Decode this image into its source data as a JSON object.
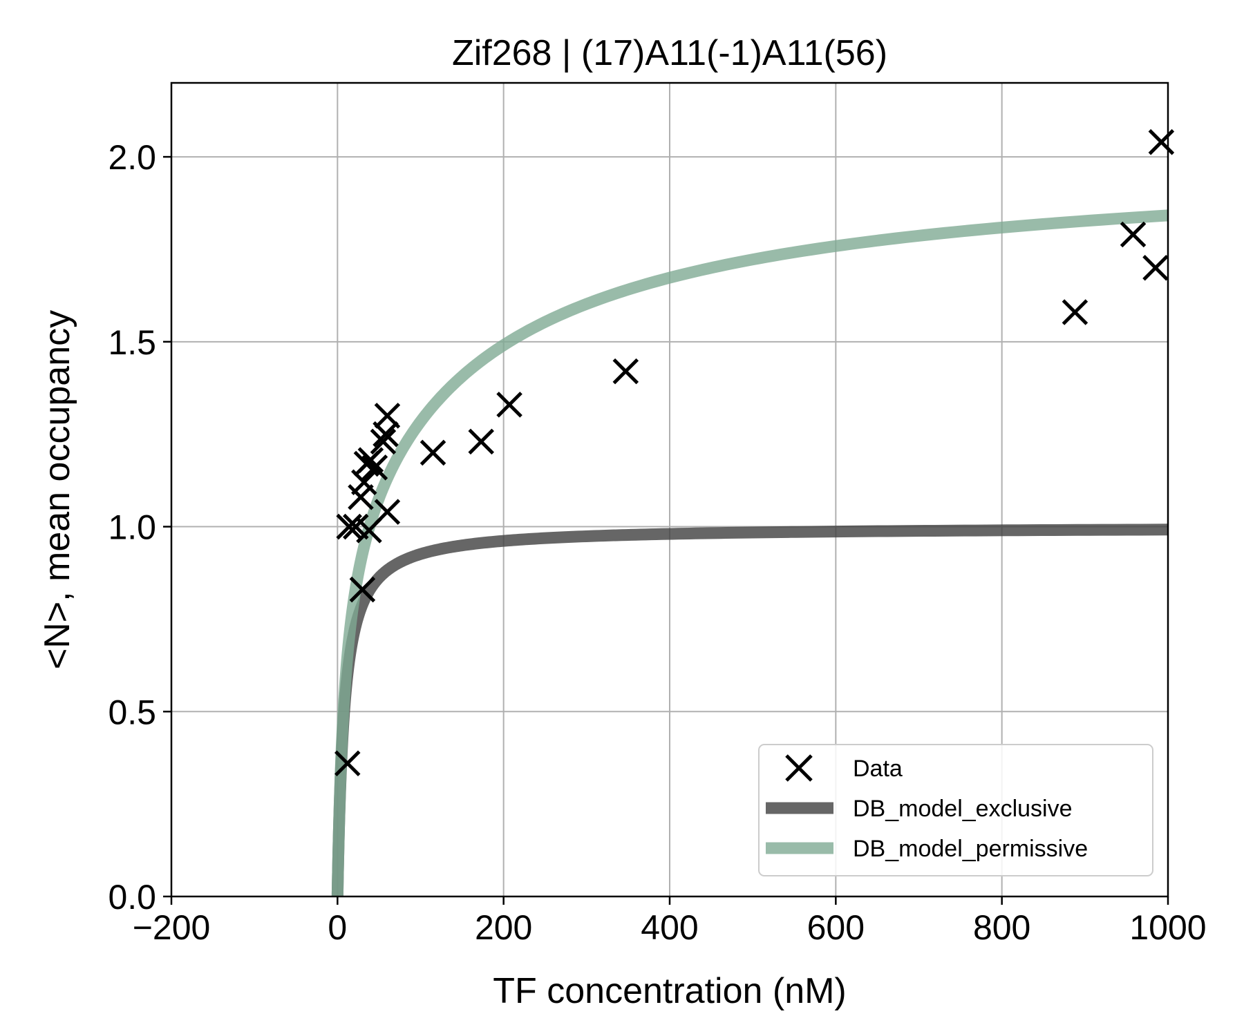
{
  "chart_data": {
    "type": "scatter",
    "title": "Zif268 | (17)A11(-1)A11(56)",
    "xlabel": "TF concentration (nM)",
    "ylabel": "<N>, mean occupancy",
    "xlim": [
      -200,
      1000
    ],
    "ylim": [
      0,
      2.2
    ],
    "xticks": [
      -200,
      0,
      200,
      400,
      600,
      800,
      1000
    ],
    "xtick_labels": [
      "−200",
      "0",
      "200",
      "400",
      "600",
      "800",
      "1000"
    ],
    "yticks": [
      0.0,
      0.5,
      1.0,
      1.5,
      2.0
    ],
    "ytick_labels": [
      "0.0",
      "0.5",
      "1.0",
      "1.5",
      "2.0"
    ],
    "grid": true,
    "legend_position": "lower-right",
    "series": [
      {
        "name": "Data",
        "kind": "scatter",
        "marker": "x",
        "color": "#000000",
        "points": [
          [
            12,
            0.36
          ],
          [
            14,
            1.0
          ],
          [
            22,
            1.0
          ],
          [
            28,
            1.08
          ],
          [
            32,
            1.12
          ],
          [
            35,
            1.17
          ],
          [
            38,
            0.99
          ],
          [
            40,
            1.18
          ],
          [
            45,
            1.16
          ],
          [
            55,
            1.23
          ],
          [
            58,
            1.25
          ],
          [
            60,
            1.3
          ],
          [
            60,
            1.04
          ],
          [
            30,
            0.83
          ],
          [
            115,
            1.2
          ],
          [
            173,
            1.23
          ],
          [
            207,
            1.33
          ],
          [
            347,
            1.42
          ],
          [
            888,
            1.58
          ],
          [
            958,
            1.79
          ],
          [
            985,
            1.7
          ],
          [
            992,
            2.04
          ]
        ]
      },
      {
        "name": "DB_model_exclusive",
        "kind": "line",
        "color": "#404040",
        "model": "hill",
        "params": {
          "nmax": 1.0,
          "kd": 8.0,
          "hill": 1.0
        }
      },
      {
        "name": "DB_model_permissive",
        "kind": "line",
        "color": "#7faa93",
        "model": "two_site",
        "params": {
          "kd1": 8.0,
          "kd2": 185.0
        }
      }
    ]
  }
}
